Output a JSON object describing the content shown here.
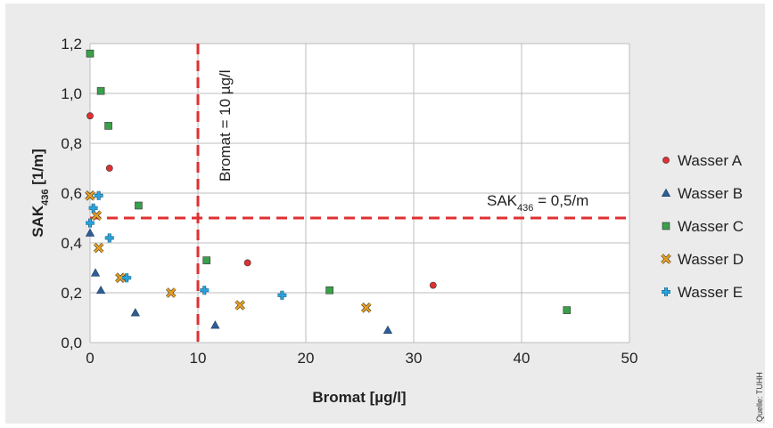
{
  "chart_data": {
    "type": "scatter",
    "title": "",
    "xlabel": "Bromat [µg/l]",
    "ylabel": {
      "main": "SAK",
      "sub": "436",
      "unit": " [1/m]"
    },
    "xlim": [
      0,
      50
    ],
    "ylim": [
      0,
      1.2
    ],
    "xticks": [
      0,
      10,
      20,
      30,
      40,
      50
    ],
    "yticks": [
      0.0,
      0.2,
      0.4,
      0.6,
      0.8,
      1.0,
      1.2
    ],
    "ytick_labels": [
      "0,0",
      "0,2",
      "0,4",
      "0,6",
      "0,8",
      "1,0",
      "1,2"
    ],
    "grid": true,
    "legend_position": "right",
    "reference_lines": [
      {
        "orientation": "vertical",
        "value": 10,
        "label": "Bromat = 10 µg/l",
        "color": "#e03030"
      },
      {
        "orientation": "horizontal",
        "value": 0.5,
        "label_main": "SAK",
        "label_sub": "436",
        "label_rest": " = 0,5/m",
        "color": "#e03030"
      }
    ],
    "series": [
      {
        "name": "Wasser A",
        "marker": "circle",
        "color": "#e03030",
        "points": [
          [
            0.0,
            0.91
          ],
          [
            1.8,
            0.7
          ],
          [
            14.6,
            0.32
          ],
          [
            31.8,
            0.23
          ]
        ]
      },
      {
        "name": "Wasser B",
        "marker": "triangle",
        "color": "#2e5d95",
        "points": [
          [
            0.0,
            0.44
          ],
          [
            0.5,
            0.28
          ],
          [
            1.0,
            0.21
          ],
          [
            4.2,
            0.12
          ],
          [
            11.6,
            0.07
          ],
          [
            27.6,
            0.05
          ]
        ]
      },
      {
        "name": "Wasser C",
        "marker": "square",
        "color": "#3aa04a",
        "points": [
          [
            0.0,
            1.16
          ],
          [
            1.0,
            1.01
          ],
          [
            1.7,
            0.87
          ],
          [
            4.5,
            0.55
          ],
          [
            10.8,
            0.33
          ],
          [
            22.2,
            0.21
          ],
          [
            44.2,
            0.13
          ]
        ]
      },
      {
        "name": "Wasser D",
        "marker": "x",
        "color": "#e8a020",
        "points": [
          [
            0.0,
            0.59
          ],
          [
            0.6,
            0.51
          ],
          [
            0.8,
            0.38
          ],
          [
            2.8,
            0.26
          ],
          [
            7.5,
            0.2
          ],
          [
            13.9,
            0.15
          ],
          [
            25.6,
            0.14
          ]
        ]
      },
      {
        "name": "Wasser E",
        "marker": "plus",
        "color": "#29a3dc",
        "points": [
          [
            0.0,
            0.48
          ],
          [
            0.3,
            0.54
          ],
          [
            0.8,
            0.59
          ],
          [
            1.8,
            0.42
          ],
          [
            3.4,
            0.26
          ],
          [
            10.6,
            0.21
          ],
          [
            17.8,
            0.19
          ]
        ]
      }
    ]
  },
  "source_note": "Quelle: TUHH"
}
